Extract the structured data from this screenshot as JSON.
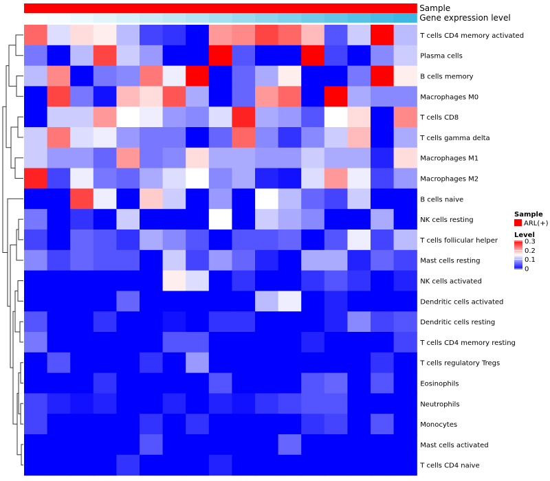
{
  "chart_data": {
    "type": "heatmap",
    "title": "",
    "rows": [
      "T cells CD4 memory activated",
      "Plasma cells",
      "B cells memory",
      "Macrophages M0",
      "T cells CD8",
      "T cells gamma delta",
      "Macrophages M1",
      "Macrophages M2",
      "B cells naive",
      "NK cells resting",
      "T cells follicular helper",
      "Mast cells resting",
      "NK cells activated",
      "Dendritic cells activated",
      "Dendritic cells resting",
      "T cells CD4 memory resting",
      "T cells regulatory  Tregs",
      "Eosinophils",
      "Neutrophils",
      "Monocytes",
      "Mast cells activated",
      "T cells CD4 naive"
    ],
    "column_count": 17,
    "values": [
      [
        0.24,
        0.13,
        0.17,
        0.16,
        0.11,
        0.04,
        0.03,
        0.0,
        0.21,
        0.22,
        0.26,
        0.24,
        0.19,
        0.05,
        0.12,
        0.32,
        0.11
      ],
      [
        0.07,
        0.0,
        0.11,
        0.26,
        0.12,
        0.09,
        0.0,
        0.0,
        0.32,
        0.05,
        0.0,
        0.0,
        0.33,
        0.04,
        0.0,
        0.08,
        0.12
      ],
      [
        0.11,
        0.22,
        0.0,
        0.07,
        0.08,
        0.23,
        0.14,
        0.33,
        0.0,
        0.06,
        0.1,
        0.16,
        0.0,
        0.0,
        0.07,
        0.32,
        0.16
      ],
      [
        0.0,
        0.26,
        0.07,
        0.01,
        0.19,
        0.17,
        0.25,
        0.1,
        0.0,
        0.06,
        0.21,
        0.24,
        0.0,
        0.32,
        0.1,
        0.08,
        0.08
      ],
      [
        0.0,
        0.12,
        0.12,
        0.21,
        0.15,
        0.14,
        0.09,
        0.08,
        0.13,
        0.28,
        0.1,
        0.09,
        0.05,
        0.15,
        0.17,
        0.0,
        0.22
      ],
      [
        0.12,
        0.23,
        0.13,
        0.14,
        0.09,
        0.07,
        0.07,
        0.0,
        0.06,
        0.24,
        0.08,
        0.03,
        0.08,
        0.12,
        0.19,
        0.0,
        0.1
      ],
      [
        0.12,
        0.09,
        0.09,
        0.06,
        0.21,
        0.07,
        0.08,
        0.17,
        0.1,
        0.1,
        0.09,
        0.09,
        0.12,
        0.1,
        0.1,
        0.02,
        0.17
      ],
      [
        0.28,
        0.04,
        0.14,
        0.07,
        0.06,
        0.1,
        0.13,
        0.15,
        0.08,
        0.1,
        0.02,
        0.01,
        0.13,
        0.21,
        0.14,
        0.04,
        0.09
      ],
      [
        0.0,
        0.0,
        0.26,
        0.14,
        0.0,
        0.18,
        0.12,
        0.0,
        0.09,
        0.0,
        0.15,
        0.11,
        0.06,
        0.04,
        0.12,
        0.0,
        0.0
      ],
      [
        0.07,
        0.0,
        0.03,
        0.0,
        0.12,
        0.0,
        0.0,
        0.0,
        0.15,
        0.0,
        0.12,
        0.1,
        0.08,
        0.0,
        0.0,
        0.1,
        0.0
      ],
      [
        0.04,
        0.0,
        0.06,
        0.05,
        0.03,
        0.1,
        0.08,
        0.05,
        0.0,
        0.05,
        0.05,
        0.06,
        0.0,
        0.05,
        0.14,
        0.04,
        0.11
      ],
      [
        0.08,
        0.04,
        0.06,
        0.05,
        0.05,
        0.0,
        0.12,
        0.04,
        0.09,
        0.06,
        0.02,
        0.0,
        0.1,
        0.1,
        0.02,
        0.06,
        0.04
      ],
      [
        0.0,
        0.0,
        0.0,
        0.0,
        0.0,
        0.0,
        0.16,
        0.13,
        0.0,
        0.03,
        0.0,
        0.0,
        0.03,
        0.05,
        0.03,
        0.0,
        0.02
      ],
      [
        0.0,
        0.0,
        0.0,
        0.0,
        0.06,
        0.0,
        0.0,
        0.0,
        0.0,
        0.0,
        0.11,
        0.14,
        0.0,
        0.02,
        0.0,
        0.0,
        0.0
      ],
      [
        0.05,
        0.0,
        0.0,
        0.03,
        0.0,
        0.0,
        0.01,
        0.0,
        0.03,
        0.03,
        0.0,
        0.0,
        0.0,
        0.02,
        0.08,
        0.04,
        0.05
      ],
      [
        0.07,
        0.0,
        0.0,
        0.0,
        0.0,
        0.0,
        0.05,
        0.05,
        0.0,
        0.0,
        0.0,
        0.0,
        0.02,
        0.0,
        0.0,
        0.0,
        0.04
      ],
      [
        0.0,
        0.05,
        0.0,
        0.0,
        0.0,
        0.03,
        0.0,
        0.09,
        0.0,
        0.0,
        0.0,
        0.0,
        0.0,
        0.0,
        0.0,
        0.03,
        0.0
      ],
      [
        0.0,
        0.0,
        0.0,
        0.03,
        0.0,
        0.0,
        0.0,
        0.0,
        0.05,
        0.0,
        0.0,
        0.0,
        0.05,
        0.06,
        0.0,
        0.05,
        0.0
      ],
      [
        0.04,
        0.02,
        0.01,
        0.02,
        0.0,
        0.0,
        0.02,
        0.0,
        0.02,
        0.01,
        0.03,
        0.04,
        0.05,
        0.05,
        0.0,
        0.0,
        0.0
      ],
      [
        0.04,
        0.0,
        0.0,
        0.0,
        0.0,
        0.03,
        0.0,
        0.03,
        0.0,
        0.0,
        0.0,
        0.0,
        0.03,
        0.04,
        0.0,
        0.05,
        0.0
      ],
      [
        0.0,
        0.0,
        0.0,
        0.0,
        0.0,
        0.05,
        0.0,
        0.0,
        0.0,
        0.0,
        0.0,
        0.06,
        0.0,
        0.0,
        0.0,
        0.0,
        0.0
      ],
      [
        0.0,
        0.0,
        0.0,
        0.0,
        0.03,
        0.0,
        0.0,
        0.0,
        0.02,
        0.0,
        0.0,
        0.0,
        0.0,
        0.0,
        0.0,
        0.0,
        0.0
      ]
    ],
    "annotation_tracks": [
      {
        "label": "Sample",
        "colors": [
          "#ff0000"
        ]
      },
      {
        "label": "Gene expression level",
        "colors": [
          "#ffffff",
          "#f6fcff",
          "#ecf9fd",
          "#e1f5fb",
          "#d5f1fa",
          "#c9edf8",
          "#bde8f6",
          "#b1e4f4",
          "#a5e0f2",
          "#98dbf0",
          "#8bd6ee",
          "#7dd1ec",
          "#70cbea",
          "#62c6e8",
          "#55c1e6",
          "#48bce4",
          "#3cb8e3"
        ]
      }
    ],
    "legend": {
      "sample_title": "Sample",
      "sample_entry": "ARL(+)",
      "sample_color": "#ff0000",
      "level_title": "Level",
      "level_ticks": [
        "0.3",
        "0.2",
        "0.1",
        "0"
      ],
      "scale_min": 0,
      "scale_mid": 0.15,
      "scale_max": 0.3,
      "color_low": "#0000ff",
      "color_mid": "#ffffff",
      "color_high": "#ff0000"
    },
    "row_dendrogram": true
  }
}
